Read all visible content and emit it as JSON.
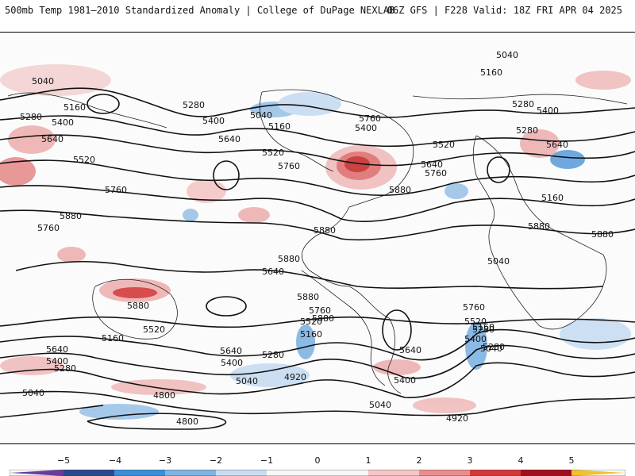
{
  "header": {
    "left_title": "500mb Temp 1981–2010 Standardized Anomaly | College of DuPage NEXLAB",
    "right_title": "06Z GFS | F228 Valid: 18Z FRI APR 04 2025"
  },
  "map": {
    "contour_labels": [
      "5040",
      "5160",
      "5280",
      "5400",
      "5520",
      "5640",
      "5760",
      "5880",
      "4920",
      "4800"
    ],
    "labels_shown": [
      {
        "text": "5040"
      },
      {
        "text": "5040"
      },
      {
        "text": "5160"
      },
      {
        "text": "5280"
      },
      {
        "text": "5400"
      },
      {
        "text": "5640"
      },
      {
        "text": "5520"
      },
      {
        "text": "5760"
      },
      {
        "text": "5880"
      },
      {
        "text": "5280"
      },
      {
        "text": "5400"
      },
      {
        "text": "5160"
      },
      {
        "text": "5640"
      },
      {
        "text": "5520"
      },
      {
        "text": "5760"
      },
      {
        "text": "5040"
      },
      {
        "text": "5160"
      },
      {
        "text": "5280"
      },
      {
        "text": "5400"
      },
      {
        "text": "5520"
      },
      {
        "text": "5640"
      },
      {
        "text": "5760"
      },
      {
        "text": "5880"
      },
      {
        "text": "5880"
      },
      {
        "text": "5880"
      },
      {
        "text": "5880"
      },
      {
        "text": "5880"
      },
      {
        "text": "5040"
      },
      {
        "text": "5160"
      },
      {
        "text": "5280"
      },
      {
        "text": "5400"
      },
      {
        "text": "5760"
      },
      {
        "text": "5640"
      },
      {
        "text": "5880"
      },
      {
        "text": "5880"
      },
      {
        "text": "5880"
      },
      {
        "text": "5760"
      },
      {
        "text": "5520"
      },
      {
        "text": "5160"
      },
      {
        "text": "5640"
      },
      {
        "text": "5400"
      },
      {
        "text": "5280"
      },
      {
        "text": "5640"
      },
      {
        "text": "5400"
      },
      {
        "text": "5280"
      },
      {
        "text": "5040"
      },
      {
        "text": "4800"
      },
      {
        "text": "4920"
      },
      {
        "text": "5040"
      },
      {
        "text": "4800"
      },
      {
        "text": "5760"
      },
      {
        "text": "5520"
      },
      {
        "text": "5160"
      },
      {
        "text": "5640"
      },
      {
        "text": "5280"
      },
      {
        "text": "5400"
      },
      {
        "text": "5040"
      },
      {
        "text": "4920"
      },
      {
        "text": "5760"
      },
      {
        "text": "5520"
      },
      {
        "text": "5400"
      },
      {
        "text": "5280"
      },
      {
        "text": "5160"
      },
      {
        "text": "5040"
      },
      {
        "text": "5640"
      }
    ]
  },
  "colorbar": {
    "labels": [
      "−5",
      "−4",
      "−3",
      "−2",
      "−1",
      "0",
      "1",
      "2",
      "3",
      "4",
      "5"
    ],
    "colors": [
      "#6a3d9a",
      "#2b4a8c",
      "#3b8fd6",
      "#7fb4e3",
      "#c8ddf2",
      "#f2f2f2",
      "#f2f2f2",
      "#f4c6c6",
      "#e88e8e",
      "#d43a3a",
      "#a00f1e",
      "#f2c12e"
    ]
  }
}
